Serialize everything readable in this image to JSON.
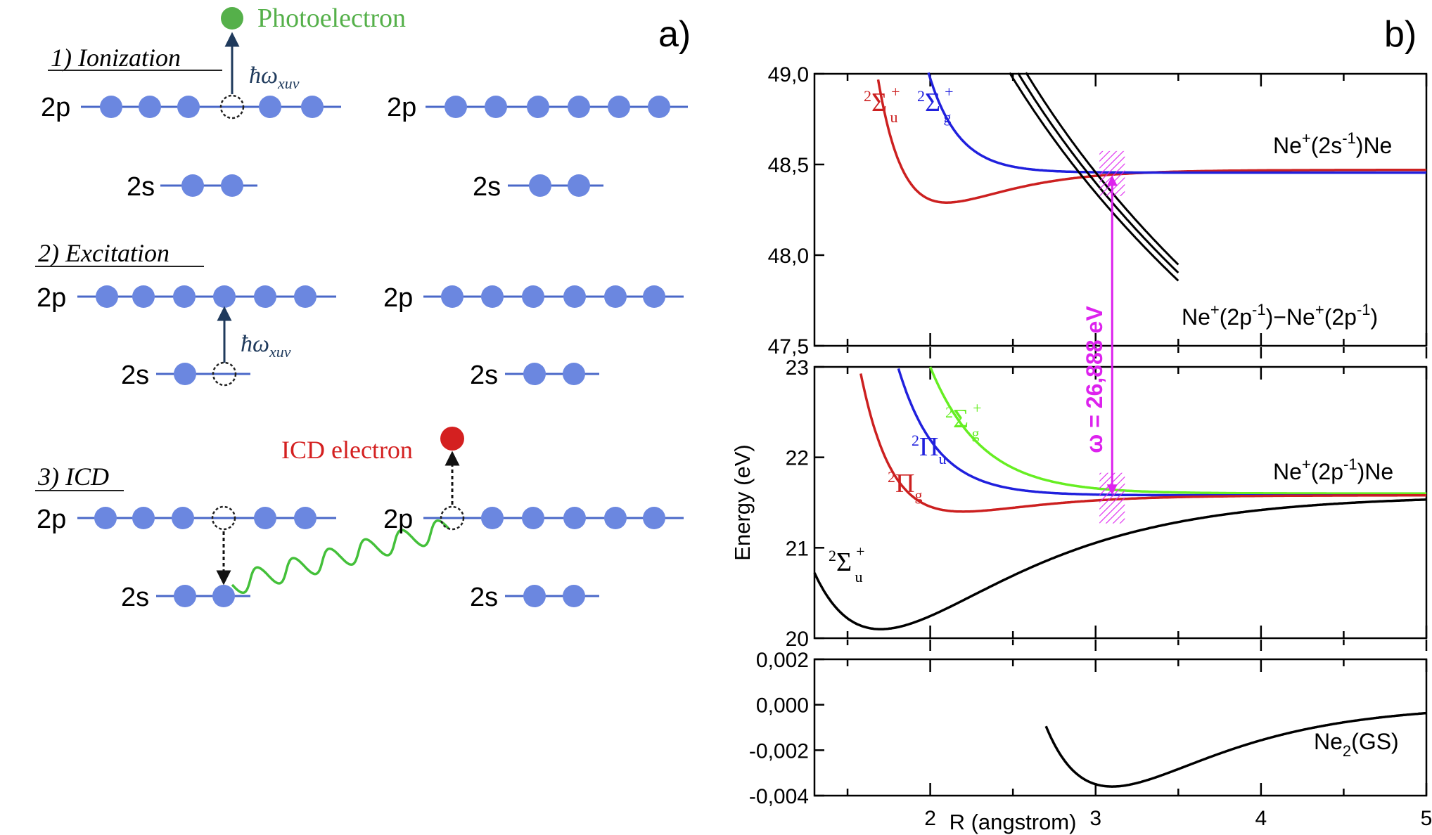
{
  "panel_a": {
    "label": "a)",
    "steps": [
      {
        "title": "1) Ionization",
        "photon": "ħω",
        "photon_sub": "xuv"
      },
      {
        "title": "2) Excitation",
        "photon": "ħω",
        "photon_sub": "xuv"
      },
      {
        "title": "3) ICD"
      }
    ],
    "orbital_2p": "2p",
    "orbital_2s": "2s",
    "photoelectron": "Photoelectron",
    "icd_electron": "ICD electron",
    "colors": {
      "orbital": "#6b87e0",
      "line": "#4a68c8",
      "photoelectron": "#55b04a",
      "icd": "#d42020",
      "wave": "#44c03a",
      "arrow": "#1f3a5c"
    }
  },
  "panel_b": {
    "label": "b)",
    "ylabel": "Energy (eV)",
    "xlabel": "R (angstrom)",
    "omega_label": "ω = 26,888 eV",
    "chart_data": [
      {
        "type": "line",
        "panel": "top",
        "ylim": [
          47.5,
          49.0
        ],
        "xlim": [
          1.3,
          5.0
        ],
        "yticks": [
          "49,0",
          "48,5",
          "48,0",
          "47,5"
        ],
        "yticks_values": [
          49.0,
          48.5,
          48.0,
          47.5
        ],
        "series": [
          {
            "name": "2Σu+",
            "state": "Σ",
            "sup": "2",
            "sub": "u",
            "sup2": "+",
            "color": "#cc2020"
          },
          {
            "name": "2Σg+",
            "state": "Σ",
            "sup": "2",
            "sub": "g",
            "sup2": "+",
            "color": "#2020dd"
          },
          {
            "name": "Ne+(2p-1)-Ne+(2p-1)",
            "color": "#000000"
          }
        ],
        "annotations": {
          "limit_top": {
            "base": "Ne",
            "sup1": "+",
            "mid": "(2s",
            "sup2": "-1",
            "end": ")Ne"
          },
          "coulomb": {
            "base": "Ne",
            "sup1": "+",
            "mid1": "(2p",
            "sup2": "-1",
            "mid2": ")−Ne",
            "sup3": "+",
            "mid3": "(2p",
            "sup4": "-1",
            "end": ")"
          }
        }
      },
      {
        "type": "line",
        "panel": "middle",
        "ylim": [
          20,
          23
        ],
        "xlim": [
          1.3,
          5.0
        ],
        "yticks": [
          "23",
          "22",
          "21",
          "20"
        ],
        "yticks_values": [
          23,
          22,
          21,
          20
        ],
        "series": [
          {
            "name": "2Σg+",
            "state": "Σ",
            "sup": "2",
            "sub": "g",
            "sup2": "+",
            "color": "#66ee22"
          },
          {
            "name": "2Πu",
            "state": "Π",
            "sup": "2",
            "sub": "u",
            "color": "#2020dd"
          },
          {
            "name": "2Πg",
            "state": "Π",
            "sup": "2",
            "sub": "g",
            "color": "#cc2020"
          },
          {
            "name": "2Σu+",
            "state": "Σ",
            "sup": "2",
            "sub": "u",
            "sup2": "+",
            "color": "#000000"
          }
        ],
        "annotations": {
          "limit_mid": {
            "base": "Ne",
            "sup1": "+",
            "mid": "(2p",
            "sup2": "-1",
            "end": ")Ne"
          }
        }
      },
      {
        "type": "line",
        "panel": "bottom",
        "ylim": [
          -0.004,
          0.002
        ],
        "xlim": [
          1.3,
          5.0
        ],
        "yticks": [
          "0,002",
          "0,000",
          "-0,002",
          "-0,004"
        ],
        "yticks_values": [
          0.002,
          0.0,
          -0.002,
          -0.004
        ],
        "xticks": [
          "2",
          "3",
          "4",
          "5"
        ],
        "xticks_values": [
          2,
          3,
          4,
          5
        ],
        "series": [
          {
            "name": "Ne2(GS)",
            "color": "#000000"
          }
        ],
        "annotations": {
          "gs": {
            "base": "Ne",
            "sub": "2",
            "end": "(GS)"
          }
        }
      }
    ],
    "marker_color": "#dd22ee"
  }
}
